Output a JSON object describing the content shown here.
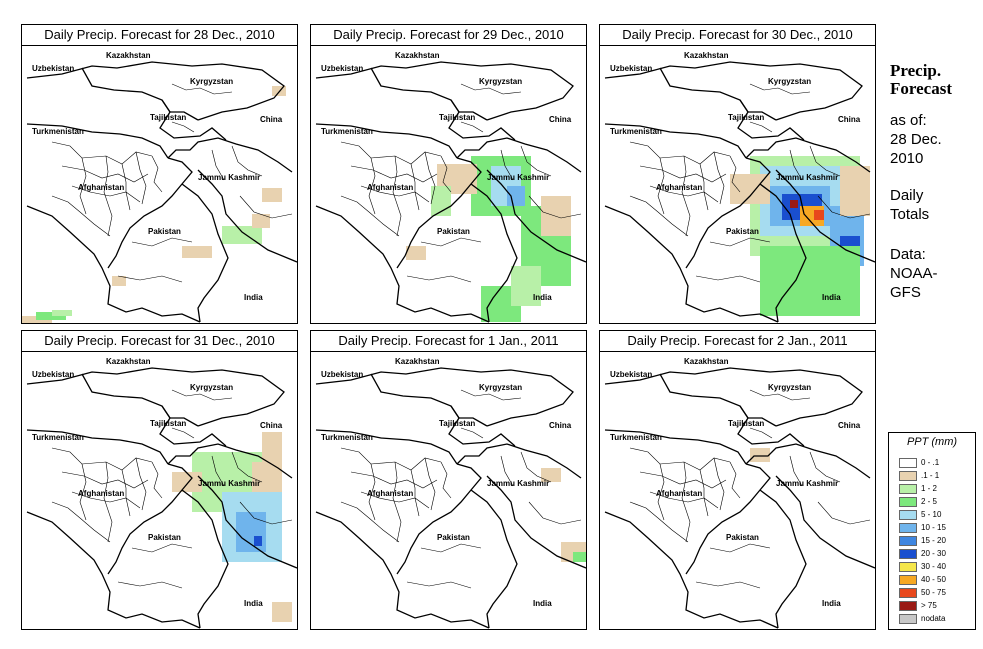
{
  "panels": [
    {
      "title": "Daily Precip. Forecast for  28 Dec., 2010",
      "precip": "p1"
    },
    {
      "title": "Daily Precip. Forecast for  29 Dec., 2010",
      "precip": "p2"
    },
    {
      "title": "Daily Precip. Forecast for  30 Dec., 2010",
      "precip": "p3"
    },
    {
      "title": "Daily Precip. Forecast for  31 Dec., 2010",
      "precip": "p4"
    },
    {
      "title": "Daily Precip. Forecast for  1 Jan., 2011",
      "precip": "p5"
    },
    {
      "title": "Daily Precip. Forecast for  2 Jan., 2011",
      "precip": "p6"
    }
  ],
  "map_labels": {
    "kazakhstan": "Kazakhstan",
    "uzbekistan": "Uzbekistan",
    "kyrgyzstan": "Kyrgyzstan",
    "tajikistan": "Tajikistan",
    "china": "China",
    "turkmenistan": "Turkmenistan",
    "jammu_kashmir": "Jammu Kashmir",
    "afghanistan": "Afghanistan",
    "pakistan": "Pakistan",
    "india": "India"
  },
  "sidebar": {
    "title_line1": "Precip.",
    "title_line2": "Forecast",
    "asof_line1": "as of:",
    "asof_line2": "28 Dec.",
    "asof_line3": "2010",
    "totals_line1": "Daily",
    "totals_line2": "Totals",
    "data_line1": "Data:",
    "data_line2": "NOAA-",
    "data_line3": "GFS"
  },
  "legend": {
    "title": "PPT (mm)",
    "items": [
      {
        "label": "0 - .1",
        "color": "#ffffff"
      },
      {
        "label": ".1 - 1",
        "color": "#e8d2b0"
      },
      {
        "label": "1 - 2",
        "color": "#b8f0a8"
      },
      {
        "label": "2 - 5",
        "color": "#7de87d"
      },
      {
        "label": "5 - 10",
        "color": "#a6dcf0"
      },
      {
        "label": "10 - 15",
        "color": "#6fb4ec"
      },
      {
        "label": "15 - 20",
        "color": "#3f86e0"
      },
      {
        "label": "20 - 30",
        "color": "#1a4fcf"
      },
      {
        "label": "30 - 40",
        "color": "#f5e64a"
      },
      {
        "label": "40 - 50",
        "color": "#f7a823"
      },
      {
        "label": "50 - 75",
        "color": "#e8481c"
      },
      {
        "label": "> 75",
        "color": "#9a1a14"
      },
      {
        "label": "nodata",
        "color": "#c8c8c8"
      }
    ]
  }
}
